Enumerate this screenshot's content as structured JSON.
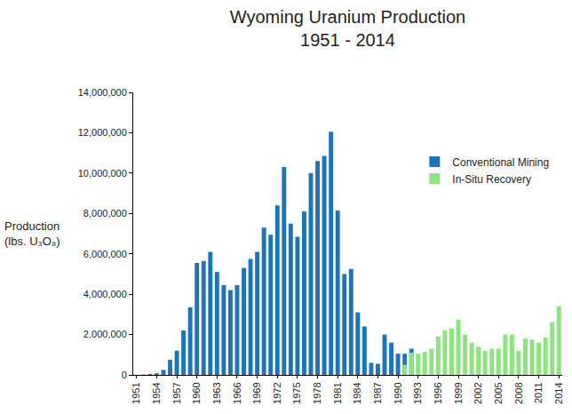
{
  "chart_data": {
    "type": "bar",
    "title": "Wyoming Uranium Production",
    "subtitle": "1951 - 2014",
    "ylabel": [
      "Production",
      "(lbs. U₃O₈)"
    ],
    "categories": [
      "1951",
      null,
      null,
      "1954",
      null,
      null,
      "1957",
      null,
      null,
      "1960",
      null,
      null,
      "1963",
      null,
      null,
      "1966",
      null,
      null,
      "1969",
      null,
      null,
      "1972",
      null,
      null,
      "1975",
      null,
      null,
      "1978",
      null,
      null,
      "1981",
      null,
      null,
      "1984",
      null,
      null,
      "1987",
      null,
      null,
      "1990",
      null,
      null,
      "1993",
      null,
      null,
      "1996",
      null,
      null,
      "1999",
      null,
      null,
      "2002",
      null,
      null,
      "2005",
      null,
      null,
      "2008",
      null,
      null,
      "2011",
      null,
      null,
      "2014"
    ],
    "series": [
      {
        "name": "Conventional Mining",
        "color": "#1a75bc",
        "values": [
          10000,
          20000,
          50000,
          80000,
          250000,
          750000,
          1200000,
          2200000,
          3350000,
          5550000,
          5650000,
          6100000,
          5100000,
          4450000,
          4200000,
          4450000,
          5300000,
          5750000,
          6100000,
          7300000,
          6950000,
          8400000,
          10300000,
          7500000,
          6850000,
          8100000,
          10000000,
          10600000,
          10850000,
          12050000,
          8150000,
          5000000,
          5250000,
          3100000,
          2400000,
          600000,
          550000,
          2000000,
          1600000,
          1050000,
          1050000,
          1300000,
          null,
          null,
          null,
          null,
          null,
          null,
          null,
          null,
          null,
          null,
          null,
          null,
          null,
          null,
          null,
          null,
          null,
          null,
          null,
          null,
          null,
          null
        ]
      },
      {
        "name": "In-Situ Recovery",
        "color": "#8ae57a",
        "values": [
          null,
          null,
          null,
          null,
          null,
          null,
          null,
          null,
          null,
          null,
          null,
          null,
          null,
          null,
          null,
          null,
          null,
          null,
          null,
          null,
          null,
          null,
          null,
          null,
          null,
          null,
          null,
          null,
          null,
          null,
          null,
          null,
          null,
          null,
          null,
          null,
          null,
          null,
          null,
          null,
          500000,
          1100000,
          1050000,
          1150000,
          1300000,
          1900000,
          2200000,
          2300000,
          2750000,
          2000000,
          1600000,
          1400000,
          1200000,
          1300000,
          1300000,
          2000000,
          2000000,
          1200000,
          1800000,
          1750000,
          1600000,
          1850000,
          2600000,
          3400000
        ]
      }
    ],
    "ylim": [
      0,
      14000000
    ],
    "yticks": [
      0,
      {
        "value": 2000000,
        "label": "2,000,000"
      },
      {
        "value": 4000000,
        "label": "4,000,000"
      },
      {
        "value": 6000000,
        "label": "6,000,000"
      },
      {
        "value": 8000000,
        "label": "8,000,000"
      },
      {
        "value": 10000000,
        "label": "10,000,000"
      },
      {
        "value": 12000000,
        "label": "12,000,000"
      },
      {
        "value": 14000000,
        "label": "14,000,000"
      }
    ],
    "grid": false,
    "legend": "upper right"
  }
}
